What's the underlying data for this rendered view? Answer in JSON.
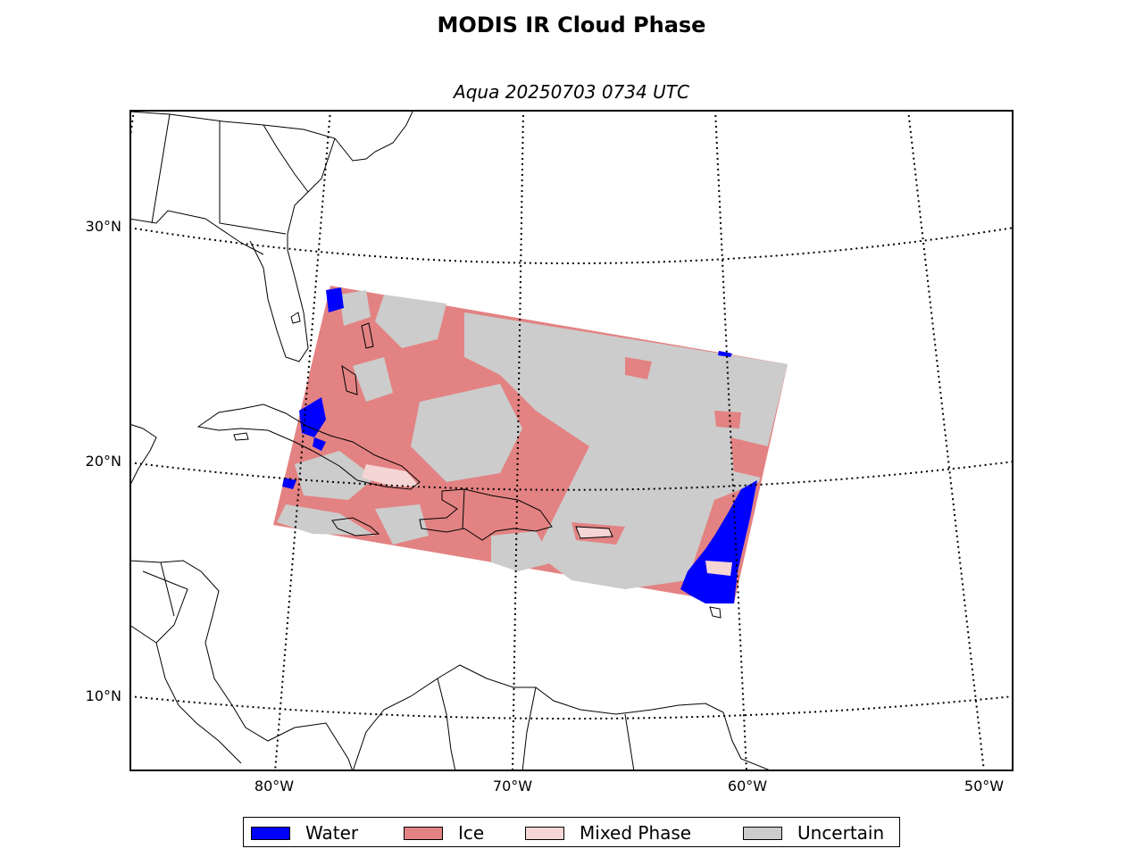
{
  "title": "MODIS IR Cloud Phase",
  "subtitle": "Aqua 20250703 0734 UTC",
  "map": {
    "lat_labels": [
      "30°N",
      "20°N",
      "10°N"
    ],
    "lon_labels": [
      "80°W",
      "70°W",
      "60°W",
      "50°W"
    ],
    "gridlines": "dotted"
  },
  "legend": {
    "placement": "bottom-center",
    "items": [
      {
        "label": "Water",
        "color": "#0000ff"
      },
      {
        "label": "Ice",
        "color": "#e38282"
      },
      {
        "label": "Mixed Phase",
        "color": "#f6d5d5"
      },
      {
        "label": "Uncertain",
        "color": "#cccccc"
      }
    ]
  }
}
